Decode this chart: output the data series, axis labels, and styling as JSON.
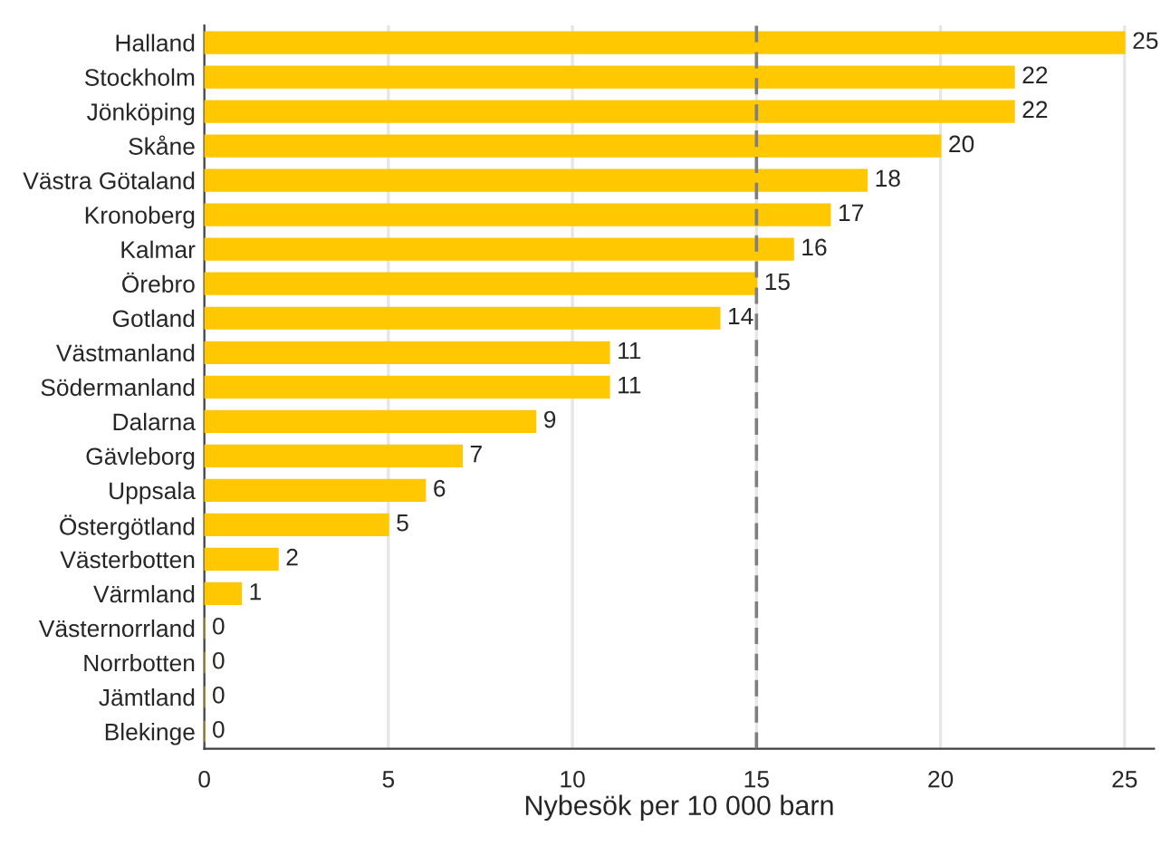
{
  "chart_data": {
    "type": "bar",
    "orientation": "horizontal",
    "xlabel": "Nybesök per 10 000 barn",
    "categories": [
      "Halland",
      "Stockholm",
      "Jönköping",
      "Skåne",
      "Västra Götaland",
      "Kronoberg",
      "Kalmar",
      "Örebro",
      "Gotland",
      "Västmanland",
      "Södermanland",
      "Dalarna",
      "Gävleborg",
      "Uppsala",
      "Östergötland",
      "Västerbotten",
      "Värmland",
      "Västernorrland",
      "Norrbotten",
      "Jämtland",
      "Blekinge"
    ],
    "values": [
      25,
      22,
      22,
      20,
      18,
      17,
      16,
      15,
      14,
      11,
      11,
      9,
      7,
      6,
      5,
      2,
      1,
      0,
      0,
      0,
      0
    ],
    "color": "#ffc800",
    "data_labels": true,
    "xlim": [
      0,
      25.8
    ],
    "xticks": [
      0,
      5,
      10,
      15,
      20,
      25
    ],
    "grid": "x",
    "ref_lines": [
      {
        "axis": "x",
        "value": 15,
        "color": "#7f7f7f",
        "line_style": "dashed"
      }
    ]
  }
}
